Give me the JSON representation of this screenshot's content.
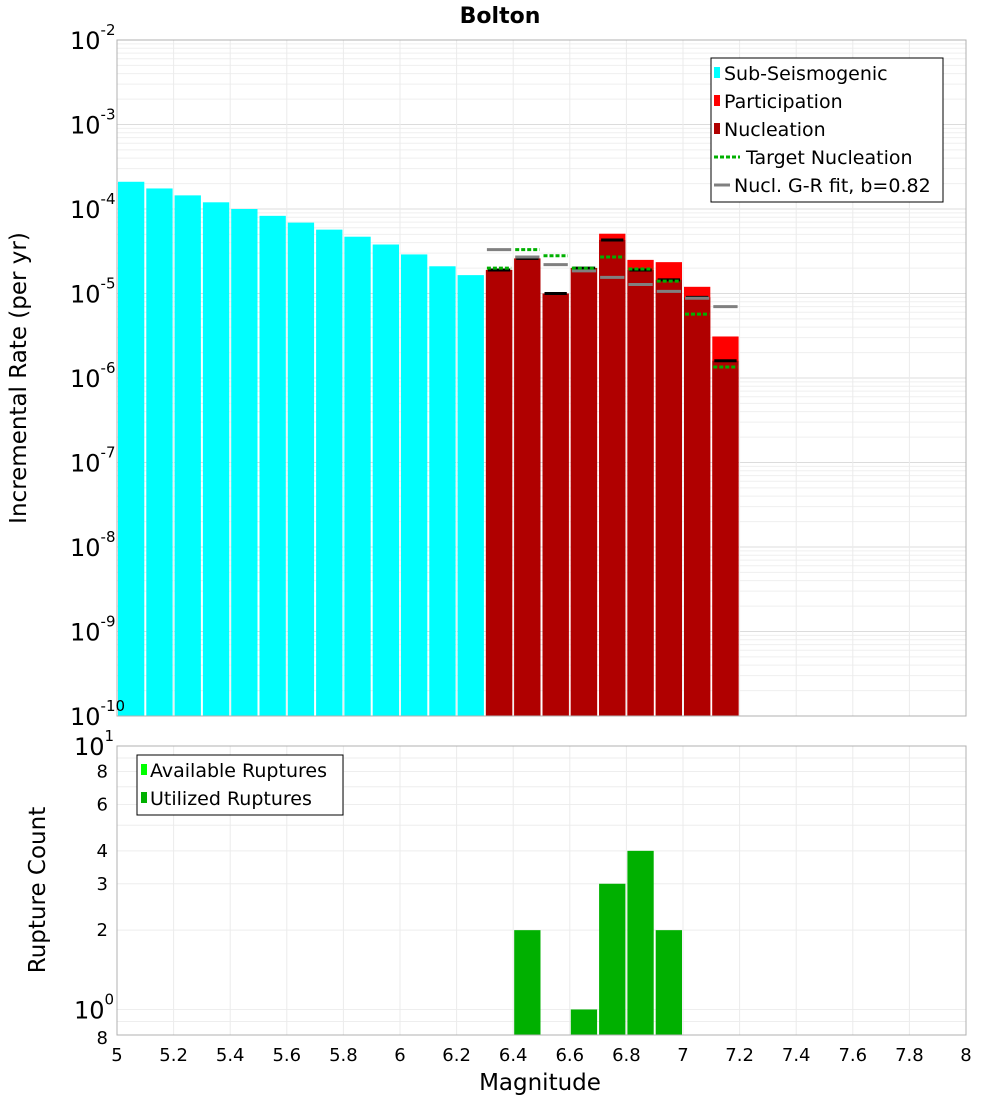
{
  "chart_data": [
    {
      "type": "bar",
      "title": "Bolton",
      "xlabel": "",
      "ylabel": "Incremental Rate (per yr)",
      "yscale": "log",
      "xlim": [
        5,
        8
      ],
      "ylim": [
        1e-10,
        0.01
      ],
      "y_tick_exponents": [
        "-10",
        "-9",
        "-8",
        "-7",
        "-6",
        "-5",
        "-4",
        "-3",
        "-2"
      ],
      "grid": true,
      "legend_position": "top-right",
      "legend": [
        "Sub-Seismogenic",
        "Participation",
        "Nucleation",
        "Target Nucleation",
        "Nucl. G-R fit, b=0.82"
      ],
      "colors": {
        "sub_seismogenic": "#00ffff",
        "participation": "#ff0000",
        "nucleation": "#b00000",
        "target": "#00b000",
        "gr_fit": "#808080",
        "nucl_line": "#000000"
      },
      "bin_width": 0.1,
      "sub_seismogenic": {
        "x": [
          5.05,
          5.15,
          5.25,
          5.35,
          5.45,
          5.55,
          5.65,
          5.75,
          5.85,
          5.95,
          6.05,
          6.15,
          6.25
        ],
        "values": [
          0.00021,
          0.000175,
          0.000145,
          0.00012,
          0.0001,
          8.3e-05,
          6.9e-05,
          5.7e-05,
          4.7e-05,
          3.8e-05,
          2.9e-05,
          2.1e-05,
          1.65e-05
        ]
      },
      "participation": {
        "x": [
          6.35,
          6.45,
          6.55,
          6.65,
          6.75,
          6.85,
          6.95,
          7.05,
          7.15
        ],
        "values": [
          1.9e-05,
          2.6e-05,
          1e-05,
          2e-05,
          5.1e-05,
          2.5e-05,
          2.35e-05,
          1.2e-05,
          3.1e-06
        ]
      },
      "nucleation": {
        "x": [
          6.35,
          6.45,
          6.55,
          6.65,
          6.75,
          6.85,
          6.95,
          7.05,
          7.15
        ],
        "values": [
          1.9e-05,
          2.6e-05,
          1e-05,
          2e-05,
          4.3e-05,
          1.9e-05,
          1.45e-05,
          9e-06,
          1.6e-06
        ]
      },
      "target_nucleation": {
        "x": [
          6.35,
          6.45,
          6.55,
          6.65,
          6.75,
          6.85,
          6.95,
          7.05,
          7.15
        ],
        "values": [
          2e-05,
          3.3e-05,
          2.8e-05,
          2e-05,
          2.7e-05,
          1.95e-05,
          1.4e-05,
          5.7e-06,
          1.35e-06
        ]
      },
      "gr_fit": {
        "x": [
          6.35,
          6.45,
          6.55,
          6.65,
          6.75,
          6.85,
          6.95,
          7.05,
          7.15
        ],
        "values": [
          3.3e-05,
          2.7e-05,
          2.2e-05,
          1.85e-05,
          1.55e-05,
          1.28e-05,
          1.06e-05,
          8.8e-06,
          7e-06
        ]
      }
    },
    {
      "type": "bar",
      "title": "",
      "xlabel": "Magnitude",
      "ylabel": "Rupture Count",
      "yscale": "log",
      "xlim": [
        5,
        8
      ],
      "ylim": [
        0.8,
        10
      ],
      "x_ticks": [
        "5",
        "5.2",
        "5.4",
        "5.6",
        "5.8",
        "6",
        "6.2",
        "6.4",
        "6.6",
        "6.8",
        "7",
        "7.2",
        "7.4",
        "7.6",
        "7.8",
        "8"
      ],
      "y_minor_ticks": [
        "8",
        "2",
        "3",
        "4",
        "6",
        "8"
      ],
      "y_major_exponents": [
        "0",
        "1"
      ],
      "grid": true,
      "legend_position": "top-left",
      "legend": [
        "Available Ruptures",
        "Utilized Ruptures"
      ],
      "colors": {
        "available": "#00ff00",
        "utilized": "#00b000"
      },
      "bin_width": 0.1,
      "utilized": {
        "x": [
          6.45,
          6.65,
          6.75,
          6.85,
          6.95
        ],
        "values": [
          2,
          1,
          3,
          4,
          2
        ]
      }
    }
  ]
}
